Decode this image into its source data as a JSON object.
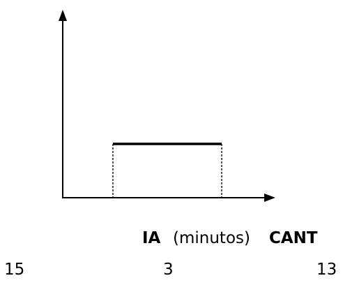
{
  "diagram": {
    "type": "uniform-distribution-sketch",
    "axes": {
      "x_arrow": true,
      "y_arrow": true
    },
    "line_color": "#000000"
  },
  "labels": {
    "ia": "IA",
    "unit": "(minutos)",
    "cant": "CANT"
  },
  "values": {
    "left": "15",
    "center": "3",
    "right": "13"
  }
}
